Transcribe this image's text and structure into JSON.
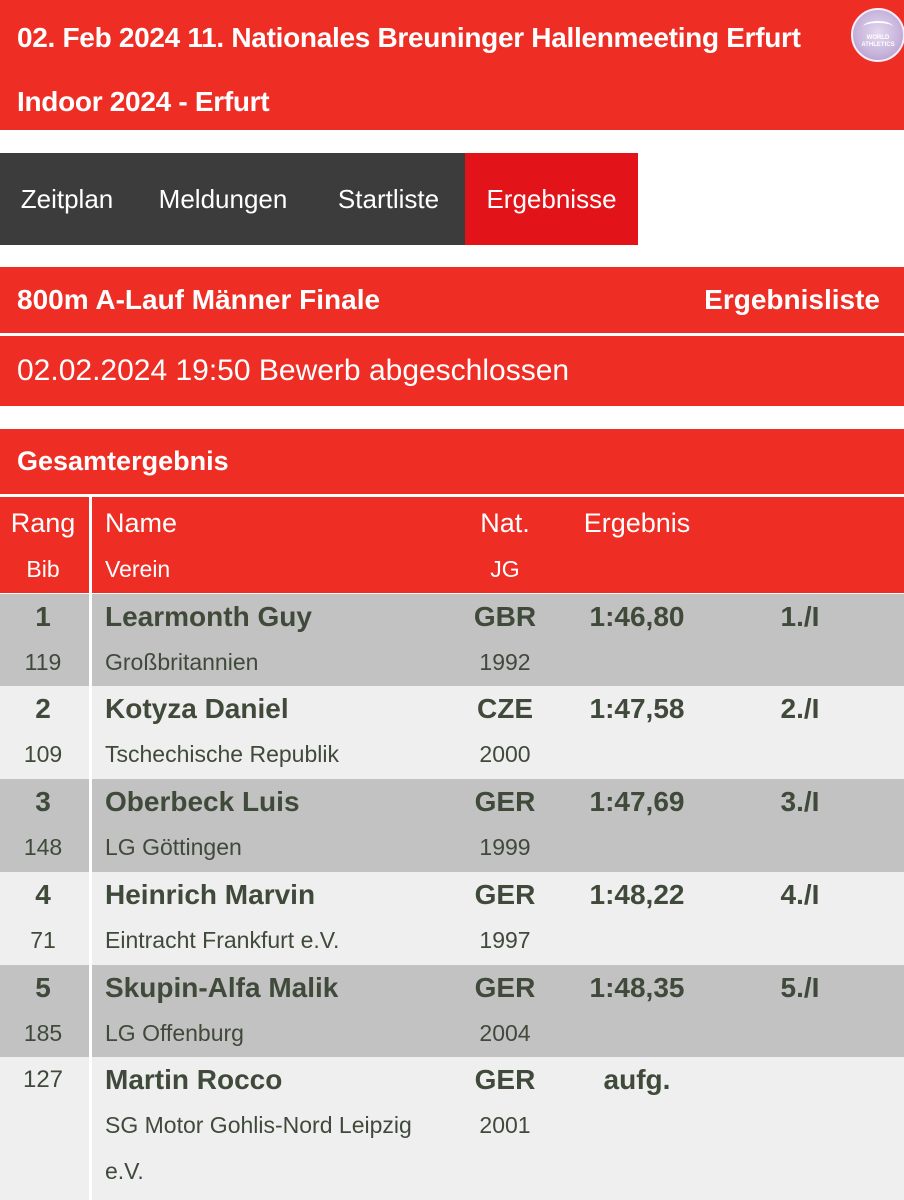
{
  "header": {
    "title": "02. Feb 2024 11. Nationales Breuninger Hallenmeeting Erfurt Indoor 2024 - Erfurt",
    "logo_label": "WORLD ATHLETICS"
  },
  "nav": {
    "tabs": [
      {
        "label": "Zeitplan"
      },
      {
        "label": "Meldungen"
      },
      {
        "label": "Startliste"
      },
      {
        "label": "Ergebnisse"
      }
    ],
    "active": "Ergebnisse"
  },
  "event": {
    "name": "800m A-Lauf Männer Finale",
    "list_type": "Ergebnisliste",
    "status": "02.02.2024 19:50 Bewerb abgeschlossen"
  },
  "section": {
    "title": "Gesamtergebnis"
  },
  "table": {
    "headers": {
      "rank": "Rang",
      "bib": "Bib",
      "name": "Name",
      "club": "Verein",
      "nat": "Nat.",
      "yob": "JG",
      "result": "Ergebnis"
    },
    "rows": [
      {
        "rank": "1",
        "bib": "119",
        "name": "Learmonth Guy",
        "club": "Großbritannien",
        "club2": "",
        "nat": "GBR",
        "yob": "1992",
        "result": "1:46,80",
        "place": "1./I"
      },
      {
        "rank": "2",
        "bib": "109",
        "name": "Kotyza Daniel",
        "club": "Tschechische Republik",
        "club2": "",
        "nat": "CZE",
        "yob": "2000",
        "result": "1:47,58",
        "place": "2./I"
      },
      {
        "rank": "3",
        "bib": "148",
        "name": "Oberbeck Luis",
        "club": "LG Göttingen",
        "club2": "",
        "nat": "GER",
        "yob": "1999",
        "result": "1:47,69",
        "place": "3./I"
      },
      {
        "rank": "4",
        "bib": "71",
        "name": "Heinrich Marvin",
        "club": "Eintracht Frankfurt e.V.",
        "club2": "",
        "nat": "GER",
        "yob": "1997",
        "result": "1:48,22",
        "place": "4./I"
      },
      {
        "rank": "5",
        "bib": "185",
        "name": "Skupin-Alfa Malik",
        "club": "LG Offenburg",
        "club2": "",
        "nat": "GER",
        "yob": "2004",
        "result": "1:48,35",
        "place": "5./I"
      },
      {
        "rank": "",
        "bib": "127",
        "name": "Martin Rocco",
        "club": "SG Motor Gohlis-Nord Leipzig",
        "club2": "e.V.",
        "nat": "GER",
        "yob": "2001",
        "result": "aufg.",
        "place": ""
      }
    ]
  },
  "colors": {
    "brand_red": "#ee2d24",
    "active_tab": "#e2141a",
    "nav_bg": "#3c3c3c",
    "row_dark": "#c2c2c2",
    "row_light": "#efefef"
  }
}
